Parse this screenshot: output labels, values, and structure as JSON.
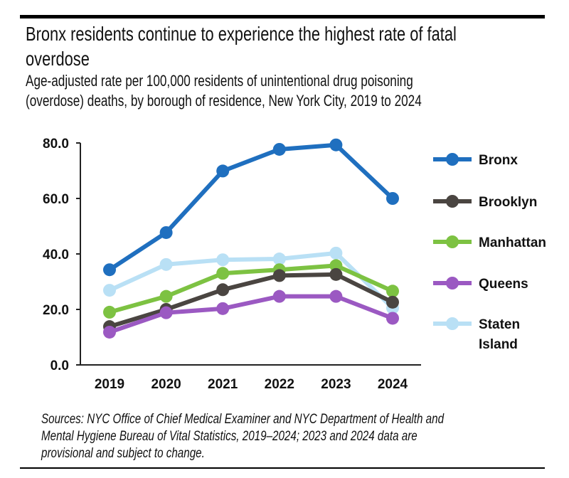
{
  "title_lines": [
    "Bronx residents continue to experience the highest rate of fatal",
    "overdose"
  ],
  "subtitle_lines": [
    "Age-adjusted rate per 100,000 residents of unintentional drug poisoning",
    "(overdose) deaths, by borough of residence, New York City, 2019 to 2024"
  ],
  "footer_lines": [
    "Sources: NYC Office of Chief Medical Examiner and NYC Department of Health and",
    "Mental Hygiene Bureau of Vital Statistics, 2019–2024; 2023 and 2024 data are",
    "provisional and subject to change."
  ],
  "chart_data": {
    "type": "line",
    "title": "Bronx residents continue to experience the highest rate of fatal overdose",
    "subtitle": "Age-adjusted rate per 100,000 residents of unintentional drug poisoning (overdose) deaths, by borough of residence, New York City, 2019 to 2024",
    "x": [
      "2019",
      "2020",
      "2021",
      "2022",
      "2023",
      "2024"
    ],
    "ylim": [
      0,
      80
    ],
    "yticks": [
      "0.0",
      "20.0",
      "40.0",
      "60.0",
      "80.0"
    ],
    "grid": false,
    "legend_placement": "right",
    "series": [
      {
        "name": "Bronx",
        "color": "#1f6fbf",
        "values": [
          34.3,
          47.7,
          69.9,
          77.7,
          79.3,
          60.0
        ]
      },
      {
        "name": "Brooklyn",
        "color": "#4a4541",
        "values": [
          13.8,
          20.0,
          27.1,
          32.2,
          32.6,
          22.6
        ]
      },
      {
        "name": "Manhattan",
        "color": "#7dc242",
        "values": [
          19.0,
          24.7,
          33.0,
          34.3,
          35.8,
          26.6
        ]
      },
      {
        "name": "Queens",
        "color": "#9b59c2",
        "values": [
          11.8,
          18.8,
          20.3,
          24.7,
          24.7,
          16.8
        ]
      },
      {
        "name": "Staten Island",
        "legend_lines": [
          "Staten",
          "Island"
        ],
        "color": "#b9e0f5",
        "values": [
          26.9,
          36.2,
          37.9,
          38.2,
          40.3,
          20.5
        ]
      }
    ]
  }
}
